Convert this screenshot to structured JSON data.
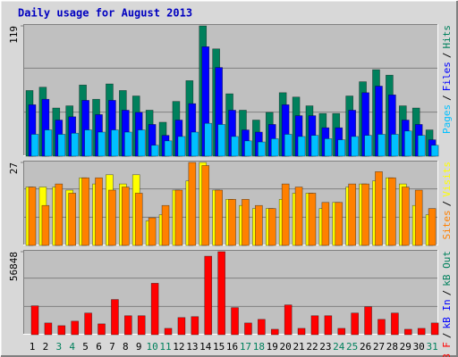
{
  "title": "Daily usage for August 2013",
  "chart_data": [
    {
      "type": "bar",
      "ylim": [
        0,
        119
      ],
      "yticks": [
        119
      ],
      "grid_divisions": 3,
      "legend_separator": "/",
      "series": [
        {
          "name": "Hits",
          "color": "#00805c",
          "values": [
            60,
            63,
            44,
            46,
            65,
            52,
            66,
            60,
            55,
            42,
            31,
            50,
            69,
            119,
            98,
            57,
            42,
            33,
            40,
            58,
            54,
            46,
            39,
            39,
            55,
            68,
            79,
            74,
            46,
            44,
            24
          ]
        },
        {
          "name": "Files",
          "color": "#0000ff",
          "values": [
            47,
            52,
            33,
            36,
            51,
            38,
            51,
            42,
            40,
            29,
            19,
            33,
            48,
            100,
            81,
            42,
            24,
            22,
            29,
            47,
            37,
            37,
            26,
            26,
            42,
            58,
            64,
            56,
            33,
            29,
            15
          ]
        },
        {
          "name": "Pages",
          "color": "#00c0ff",
          "values": [
            20,
            24,
            20,
            21,
            24,
            22,
            24,
            22,
            24,
            10,
            14,
            18,
            22,
            30,
            29,
            18,
            14,
            13,
            16,
            20,
            18,
            19,
            16,
            15,
            18,
            19,
            20,
            20,
            23,
            19,
            10
          ]
        }
      ]
    },
    {
      "type": "bar",
      "ylim": [
        0,
        27
      ],
      "yticks": [
        27
      ],
      "grid_divisions": 3,
      "legend_separator": "/",
      "series": [
        {
          "name": "Visits",
          "color": "#ffff00",
          "values": [
            19,
            19,
            19,
            18,
            22,
            20,
            23,
            20,
            23,
            8,
            10,
            18,
            21,
            27,
            18,
            15,
            13,
            12,
            12,
            15,
            17,
            17,
            12,
            14,
            19,
            20,
            21,
            22,
            20,
            13,
            10
          ]
        },
        {
          "name": "Sites",
          "color": "#ff8000",
          "values": [
            19,
            13,
            20,
            17,
            22,
            22,
            18,
            19,
            17,
            9,
            13,
            18,
            27,
            26,
            18,
            15,
            15,
            13,
            12,
            20,
            19,
            17,
            14,
            14,
            20,
            20,
            24,
            22,
            19,
            18,
            12
          ]
        }
      ]
    },
    {
      "type": "bar",
      "ylim": [
        0,
        56848
      ],
      "yticks": [
        56848
      ],
      "grid_divisions": 3,
      "legend_separator": "/",
      "categories": [
        "1",
        "2",
        "3",
        "4",
        "5",
        "6",
        "7",
        "8",
        "9",
        "10",
        "11",
        "12",
        "13",
        "14",
        "15",
        "16",
        "17",
        "18",
        "19",
        "20",
        "21",
        "22",
        "23",
        "24",
        "25",
        "26",
        "27",
        "28",
        "29",
        "30",
        "31"
      ],
      "x_label_colors": [
        "#000000",
        "#000000",
        "#00805c",
        "#00805c",
        "#000000",
        "#000000",
        "#000000",
        "#000000",
        "#000000",
        "#00805c",
        "#00805c",
        "#000000",
        "#000000",
        "#000000",
        "#000000",
        "#000000",
        "#00805c",
        "#00805c",
        "#000000",
        "#000000",
        "#000000",
        "#000000",
        "#000000",
        "#00805c",
        "#00805c",
        "#000000",
        "#000000",
        "#000000",
        "#000000",
        "#000000",
        "#00805c"
      ],
      "series": [
        {
          "name": "kB Out",
          "color": "#00805c",
          "values": [
            0,
            0,
            0,
            0,
            0,
            0,
            0,
            0,
            0,
            0,
            0,
            0,
            0,
            0,
            0,
            0,
            0,
            0,
            0,
            0,
            0,
            0,
            0,
            0,
            0,
            0,
            0,
            0,
            0,
            0,
            0
          ]
        },
        {
          "name": "kB In",
          "color": "#0000ff",
          "values": [
            0,
            0,
            0,
            0,
            0,
            0,
            0,
            0,
            0,
            0,
            0,
            0,
            0,
            0,
            0,
            0,
            0,
            0,
            0,
            0,
            0,
            0,
            0,
            0,
            0,
            0,
            0,
            0,
            0,
            0,
            0
          ]
        },
        {
          "name": "kB F",
          "color": "#ff0000",
          "values": [
            19770,
            8030,
            6180,
            9270,
            14830,
            7410,
            24100,
            12980,
            12980,
            35220,
            4330,
            11740,
            12360,
            53760,
            56848,
            18540,
            8030,
            10500,
            3710,
            20390,
            4330,
            12980,
            12980,
            4330,
            14830,
            19150,
            10500,
            14830,
            3710,
            4330,
            8030
          ]
        }
      ]
    }
  ]
}
